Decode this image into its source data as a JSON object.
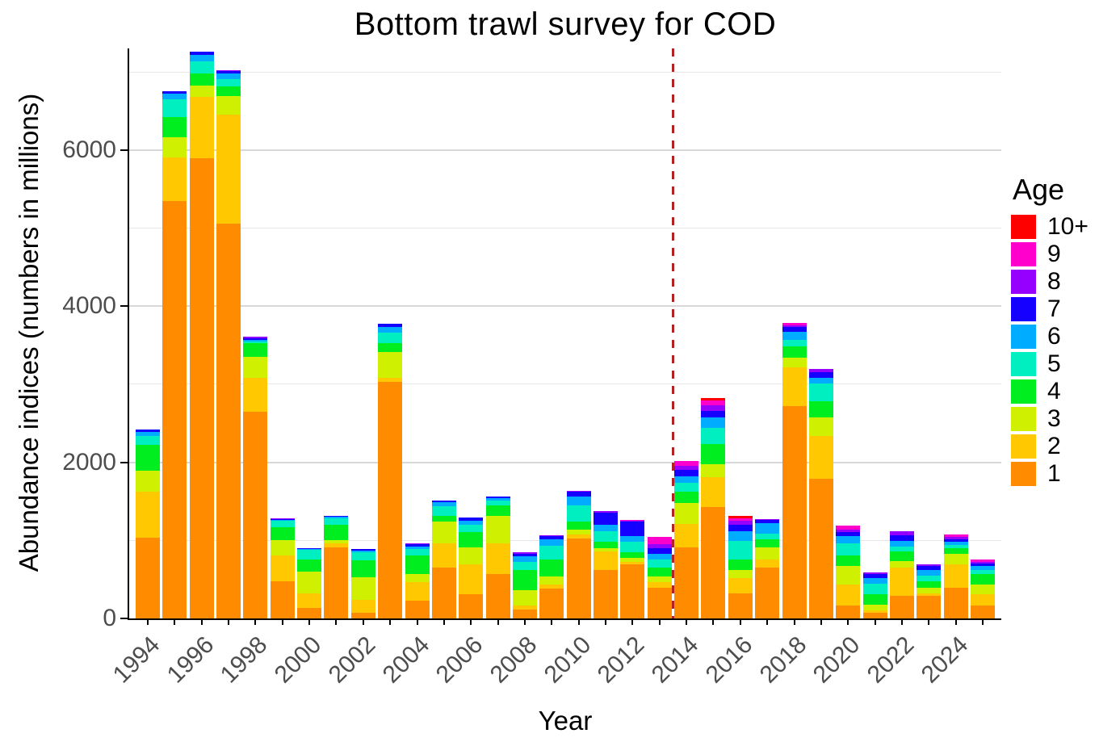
{
  "title": "Bottom trawl survey for COD",
  "y_axis": {
    "title": "Abundance indices (numbers in millions)",
    "tick_values": [
      0,
      2000,
      4000,
      6000
    ],
    "tick_labels": [
      "0",
      "2000",
      "4000",
      "6000"
    ]
  },
  "x_axis": {
    "title": "Year",
    "tick_labels": [
      "1994",
      "1996",
      "1998",
      "2000",
      "2002",
      "2004",
      "2006",
      "2008",
      "2010",
      "2012",
      "2014",
      "2016",
      "2018",
      "2020",
      "2022",
      "2024"
    ]
  },
  "legend": {
    "title": "Age",
    "entries": [
      {
        "label": "10+",
        "color": "#FF0000"
      },
      {
        "label": "9",
        "color": "#FF00CC"
      },
      {
        "label": "8",
        "color": "#9500FF"
      },
      {
        "label": "7",
        "color": "#1500FF"
      },
      {
        "label": "6",
        "color": "#00ACFF"
      },
      {
        "label": "5",
        "color": "#00EFC1"
      },
      {
        "label": "4",
        "color": "#00EE20"
      },
      {
        "label": "3",
        "color": "#CFF000"
      },
      {
        "label": "2",
        "color": "#FFC800"
      },
      {
        "label": "1",
        "color": "#FF8C00"
      }
    ]
  },
  "annotation": {
    "type": "vline",
    "x": 2013.5,
    "style": "dashed",
    "color": "#B22222"
  },
  "chart_data": {
    "type": "bar",
    "stacked": true,
    "title": "Bottom trawl survey for COD",
    "xlabel": "Year",
    "ylabel": "Abundance indices (numbers in millions)",
    "ylim": [
      0,
      7300
    ],
    "grid": {
      "major": [
        2000,
        4000,
        6000
      ],
      "minor": [
        1000,
        3000,
        5000,
        7000
      ]
    },
    "legend_position": "right",
    "vline": {
      "x": 2013.5,
      "color": "#B22222",
      "style": "dashed"
    },
    "categories": [
      1994,
      1995,
      1996,
      1997,
      1998,
      1999,
      2000,
      2001,
      2002,
      2003,
      2004,
      2005,
      2006,
      2007,
      2008,
      2009,
      2010,
      2011,
      2012,
      2013,
      2014,
      2015,
      2016,
      2017,
      2018,
      2019,
      2020,
      2021,
      2022,
      2023,
      2024,
      2025
    ],
    "series": [
      {
        "name": "1",
        "color": "#FF8C00",
        "values": [
          1035,
          5350,
          5890,
          5060,
          2650,
          480,
          130,
          905,
          70,
          3030,
          225,
          655,
          310,
          570,
          110,
          380,
          1025,
          620,
          690,
          395,
          910,
          1430,
          325,
          655,
          2720,
          1790,
          170,
          70,
          290,
          290,
          390,
          170
        ]
      },
      {
        "name": "2",
        "color": "#FFC800",
        "values": [
          585,
          550,
          790,
          1395,
          430,
          330,
          195,
          60,
          170,
          50,
          240,
          310,
          380,
          395,
          60,
          50,
          50,
          240,
          35,
          70,
          295,
          380,
          190,
          105,
          500,
          550,
          260,
          35,
          360,
          35,
          300,
          140
        ]
      },
      {
        "name": "3",
        "color": "#CFF000",
        "values": [
          275,
          260,
          140,
          240,
          275,
          190,
          275,
          35,
          285,
          330,
          105,
          275,
          225,
          345,
          190,
          105,
          60,
          35,
          50,
          70,
          275,
          170,
          105,
          155,
          120,
          240,
          240,
          70,
          85,
          70,
          135,
          120
        ]
      },
      {
        "name": "4",
        "color": "#00EE20",
        "values": [
          330,
          260,
          155,
          115,
          170,
          170,
          155,
          205,
          215,
          120,
          240,
          70,
          190,
          140,
          260,
          225,
          105,
          85,
          70,
          120,
          140,
          255,
          135,
          100,
          140,
          205,
          140,
          140,
          120,
          85,
          80,
          140
        ]
      },
      {
        "name": "5",
        "color": "#00EFC1",
        "values": [
          115,
          225,
          155,
          95,
          25,
          80,
          120,
          75,
          110,
          130,
          80,
          130,
          95,
          60,
          105,
          170,
          205,
          140,
          140,
          105,
          120,
          210,
          240,
          70,
          85,
          225,
          155,
          135,
          70,
          70,
          40,
          50
        ]
      },
      {
        "name": "6",
        "color": "#00ACFF",
        "values": [
          45,
          75,
          85,
          75,
          15,
          15,
          15,
          20,
          15,
          70,
          30,
          45,
          50,
          30,
          70,
          85,
          120,
          85,
          70,
          70,
          85,
          125,
          120,
          135,
          105,
          70,
          85,
          70,
          70,
          70,
          40,
          50
        ]
      },
      {
        "name": "7",
        "color": "#1500FF",
        "values": [
          35,
          35,
          45,
          30,
          25,
          10,
          10,
          10,
          20,
          40,
          30,
          30,
          40,
          25,
          35,
          40,
          60,
          145,
          185,
          70,
          75,
          85,
          85,
          40,
          65,
          70,
          60,
          45,
          70,
          50,
          27,
          35
        ]
      },
      {
        "name": "8",
        "color": "#9500FF",
        "values": [
          0,
          0,
          0,
          15,
          15,
          10,
          0,
          0,
          0,
          0,
          15,
          0,
          0,
          0,
          15,
          10,
          10,
          25,
          15,
          50,
          60,
          80,
          55,
          15,
          15,
          45,
          25,
          20,
          55,
          20,
          29,
          16
        ]
      },
      {
        "name": "9",
        "color": "#FF00CC",
        "values": [
          0,
          0,
          0,
          0,
          0,
          0,
          0,
          0,
          0,
          0,
          0,
          0,
          0,
          0,
          0,
          0,
          0,
          0,
          10,
          95,
          60,
          60,
          30,
          0,
          35,
          0,
          55,
          0,
          0,
          0,
          34,
          34
        ]
      },
      {
        "name": "10+",
        "color": "#FF0000",
        "values": [
          0,
          0,
          0,
          0,
          0,
          0,
          0,
          0,
          0,
          0,
          0,
          0,
          0,
          0,
          0,
          0,
          0,
          0,
          0,
          0,
          0,
          30,
          30,
          0,
          0,
          0,
          0,
          0,
          0,
          0,
          0,
          0
        ]
      }
    ]
  }
}
